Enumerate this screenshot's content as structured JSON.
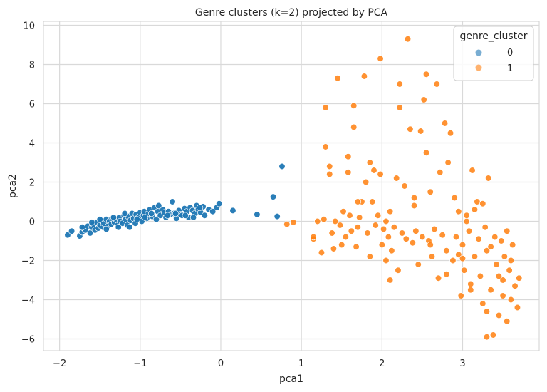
{
  "chart_data": {
    "type": "scatter",
    "title": "Genre clusters (k=2) projected by PCA",
    "xlabel": "pca1",
    "ylabel": "pca2",
    "xlim": [
      -2.2,
      3.95
    ],
    "ylim": [
      -6.6,
      10.2
    ],
    "xticks": [
      -2,
      -1,
      0,
      1,
      2,
      3
    ],
    "yticks": [
      -6,
      -4,
      -2,
      0,
      2,
      4,
      6,
      8,
      10
    ],
    "grid": true,
    "legend": {
      "title": "genre_cluster",
      "position": "top-right"
    },
    "series": [
      {
        "name": "0",
        "color": "#1f77b4",
        "points": [
          [
            -1.9,
            -0.7
          ],
          [
            -1.85,
            -0.5
          ],
          [
            -1.75,
            -0.75
          ],
          [
            -1.72,
            -0.55
          ],
          [
            -1.7,
            -0.35
          ],
          [
            -1.68,
            -0.45
          ],
          [
            -1.65,
            -0.25
          ],
          [
            -1.62,
            -0.6
          ],
          [
            -1.6,
            -0.3
          ],
          [
            -1.58,
            -0.15
          ],
          [
            -1.56,
            -0.45
          ],
          [
            -1.55,
            -0.05
          ],
          [
            -1.52,
            -0.35
          ],
          [
            -1.5,
            -0.2
          ],
          [
            -1.48,
            0.05
          ],
          [
            -1.46,
            -0.3
          ],
          [
            -1.45,
            -0.1
          ],
          [
            -1.42,
            0.1
          ],
          [
            -1.4,
            -0.25
          ],
          [
            -1.38,
            0.0
          ],
          [
            -1.36,
            -0.15
          ],
          [
            -1.35,
            0.15
          ],
          [
            -1.32,
            -0.05
          ],
          [
            -1.3,
            0.1
          ],
          [
            -1.28,
            -0.2
          ],
          [
            -1.26,
            0.2
          ],
          [
            -1.25,
            0.0
          ],
          [
            -1.22,
            -0.1
          ],
          [
            -1.2,
            0.3
          ],
          [
            -1.18,
            0.1
          ],
          [
            -1.16,
            -0.2
          ],
          [
            -1.15,
            0.25
          ],
          [
            -1.12,
            0.05
          ],
          [
            -1.1,
            0.4
          ],
          [
            -1.08,
            0.15
          ],
          [
            -1.06,
            -0.1
          ],
          [
            -1.05,
            0.35
          ],
          [
            -1.02,
            0.2
          ],
          [
            -1.0,
            0.45
          ],
          [
            -0.98,
            0.0
          ],
          [
            -0.96,
            0.3
          ],
          [
            -0.95,
            0.5
          ],
          [
            -0.92,
            0.15
          ],
          [
            -0.9,
            0.4
          ],
          [
            -0.88,
            0.6
          ],
          [
            -0.85,
            0.25
          ],
          [
            -0.82,
            0.7
          ],
          [
            -0.8,
            0.1
          ],
          [
            -0.78,
            0.5
          ],
          [
            -0.75,
            0.3
          ],
          [
            -0.72,
            0.6
          ],
          [
            -0.7,
            0.45
          ],
          [
            -0.68,
            0.2
          ],
          [
            -0.65,
            0.5
          ],
          [
            -0.62,
            0.35
          ],
          [
            -0.6,
            1.0
          ],
          [
            -0.58,
            0.4
          ],
          [
            -0.55,
            0.15
          ],
          [
            -0.52,
            0.55
          ],
          [
            -0.5,
            0.35
          ],
          [
            -0.48,
            0.3
          ],
          [
            -0.45,
            0.65
          ],
          [
            -0.42,
            0.5
          ],
          [
            -0.4,
            0.2
          ],
          [
            -0.38,
            0.7
          ],
          [
            -0.35,
            0.55
          ],
          [
            -0.32,
            0.4
          ],
          [
            -0.3,
            0.8
          ],
          [
            -0.28,
            0.6
          ],
          [
            -0.25,
            0.45
          ],
          [
            -0.22,
            0.75
          ],
          [
            -0.2,
            0.3
          ],
          [
            -0.15,
            0.6
          ],
          [
            -0.1,
            0.5
          ],
          [
            -0.05,
            0.7
          ],
          [
            -0.02,
            0.9
          ],
          [
            0.15,
            0.55
          ],
          [
            0.45,
            0.35
          ],
          [
            0.65,
            1.25
          ],
          [
            0.7,
            0.25
          ],
          [
            0.76,
            2.8
          ],
          [
            -1.72,
            -0.3
          ],
          [
            -1.6,
            -0.05
          ],
          [
            -1.5,
            0.1
          ],
          [
            -1.42,
            -0.4
          ],
          [
            -1.33,
            0.2
          ],
          [
            -1.27,
            -0.3
          ],
          [
            -1.19,
            0.4
          ],
          [
            -1.13,
            -0.3
          ],
          [
            -1.04,
            0.1
          ],
          [
            -0.94,
            0.2
          ],
          [
            -0.86,
            0.4
          ],
          [
            -0.77,
            0.8
          ],
          [
            -0.66,
            0.3
          ],
          [
            -0.56,
            0.4
          ],
          [
            -0.44,
            0.3
          ],
          [
            -0.34,
            0.2
          ],
          [
            -0.26,
            0.7
          ]
        ]
      },
      {
        "name": "1",
        "color": "#ff7f0e",
        "points": [
          [
            0.82,
            -0.15
          ],
          [
            0.9,
            -0.05
          ],
          [
            1.15,
            -0.9
          ],
          [
            1.2,
            0.0
          ],
          [
            1.25,
            -1.6
          ],
          [
            1.28,
            0.1
          ],
          [
            1.3,
            3.8
          ],
          [
            1.3,
            5.8
          ],
          [
            1.35,
            2.4
          ],
          [
            1.35,
            2.8
          ],
          [
            1.38,
            -0.6
          ],
          [
            1.4,
            -1.4
          ],
          [
            1.42,
            0.0
          ],
          [
            1.45,
            7.3
          ],
          [
            1.48,
            -0.2
          ],
          [
            1.5,
            -1.2
          ],
          [
            1.52,
            0.5
          ],
          [
            1.55,
            -0.8
          ],
          [
            1.58,
            3.3
          ],
          [
            1.58,
            2.5
          ],
          [
            1.6,
            0.3
          ],
          [
            1.62,
            -0.5
          ],
          [
            1.65,
            4.8
          ],
          [
            1.65,
            5.9
          ],
          [
            1.68,
            -1.3
          ],
          [
            1.7,
            -0.3
          ],
          [
            1.72,
            0.2
          ],
          [
            1.75,
            1.0
          ],
          [
            1.78,
            7.4
          ],
          [
            1.8,
            2.0
          ],
          [
            1.82,
            -0.6
          ],
          [
            1.85,
            -1.8
          ],
          [
            1.85,
            3.0
          ],
          [
            1.88,
            1.0
          ],
          [
            1.9,
            2.6
          ],
          [
            1.92,
            -0.2
          ],
          [
            1.95,
            0.3
          ],
          [
            1.98,
            8.3
          ],
          [
            1.98,
            2.4
          ],
          [
            2.0,
            -1.2
          ],
          [
            2.02,
            -0.4
          ],
          [
            2.05,
            -2.0
          ],
          [
            2.05,
            0.0
          ],
          [
            2.08,
            -0.8
          ],
          [
            2.1,
            0.5
          ],
          [
            2.12,
            -1.5
          ],
          [
            2.15,
            -0.3
          ],
          [
            2.18,
            2.2
          ],
          [
            2.2,
            -2.5
          ],
          [
            2.22,
            7.0
          ],
          [
            2.22,
            5.8
          ],
          [
            2.25,
            -0.6
          ],
          [
            2.28,
            1.8
          ],
          [
            2.3,
            -0.9
          ],
          [
            2.32,
            9.3
          ],
          [
            2.35,
            4.7
          ],
          [
            2.38,
            -1.1
          ],
          [
            2.4,
            0.8
          ],
          [
            2.42,
            -0.5
          ],
          [
            2.45,
            -2.2
          ],
          [
            2.48,
            4.6
          ],
          [
            2.5,
            -0.8
          ],
          [
            2.52,
            6.2
          ],
          [
            2.55,
            7.5
          ],
          [
            2.55,
            3.5
          ],
          [
            2.58,
            -1.0
          ],
          [
            2.6,
            1.5
          ],
          [
            2.62,
            -1.8
          ],
          [
            2.65,
            -0.4
          ],
          [
            2.68,
            7.0
          ],
          [
            2.7,
            -2.9
          ],
          [
            2.72,
            2.5
          ],
          [
            2.75,
            -0.7
          ],
          [
            2.78,
            5.0
          ],
          [
            2.8,
            -1.5
          ],
          [
            2.82,
            3.0
          ],
          [
            2.85,
            4.5
          ],
          [
            2.88,
            -2.0
          ],
          [
            2.9,
            1.2
          ],
          [
            2.92,
            -0.8
          ],
          [
            2.95,
            0.5
          ],
          [
            2.98,
            -3.8
          ],
          [
            3.0,
            -1.2
          ],
          [
            3.02,
            -2.5
          ],
          [
            3.05,
            0.0
          ],
          [
            3.08,
            -0.5
          ],
          [
            3.1,
            -3.2
          ],
          [
            3.12,
            2.6
          ],
          [
            3.15,
            -1.8
          ],
          [
            3.18,
            1.0
          ],
          [
            3.2,
            -0.9
          ],
          [
            3.22,
            -2.8
          ],
          [
            3.25,
            -4.2
          ],
          [
            3.28,
            -0.3
          ],
          [
            3.3,
            -1.5
          ],
          [
            3.32,
            2.2
          ],
          [
            3.35,
            -3.5
          ],
          [
            3.38,
            -5.8
          ],
          [
            3.4,
            -0.8
          ],
          [
            3.42,
            -2.2
          ],
          [
            3.45,
            -4.8
          ],
          [
            3.48,
            -1.0
          ],
          [
            3.5,
            -3.0
          ],
          [
            3.52,
            -1.8
          ],
          [
            3.55,
            -0.5
          ],
          [
            3.58,
            -2.5
          ],
          [
            3.6,
            -4.0
          ],
          [
            3.62,
            -1.2
          ],
          [
            3.65,
            -3.3
          ],
          [
            3.68,
            -4.4
          ],
          [
            3.25,
            0.9
          ],
          [
            3.3,
            -5.9
          ],
          [
            3.55,
            -5.1
          ],
          [
            3.15,
            0.6
          ],
          [
            3.05,
            0.3
          ],
          [
            2.95,
            -1.7
          ],
          [
            3.45,
            -2.8
          ],
          [
            3.6,
            -2.0
          ],
          [
            3.7,
            -2.9
          ],
          [
            3.35,
            -1.3
          ],
          [
            1.15,
            -0.8
          ],
          [
            1.7,
            1.0
          ],
          [
            2.4,
            1.2
          ],
          [
            2.8,
            -2.7
          ],
          [
            3.1,
            -3.5
          ],
          [
            3.3,
            -4.6
          ],
          [
            3.5,
            -3.8
          ],
          [
            3.0,
            -1.9
          ],
          [
            2.6,
            -1.2
          ],
          [
            2.1,
            -3.0
          ]
        ]
      }
    ]
  }
}
